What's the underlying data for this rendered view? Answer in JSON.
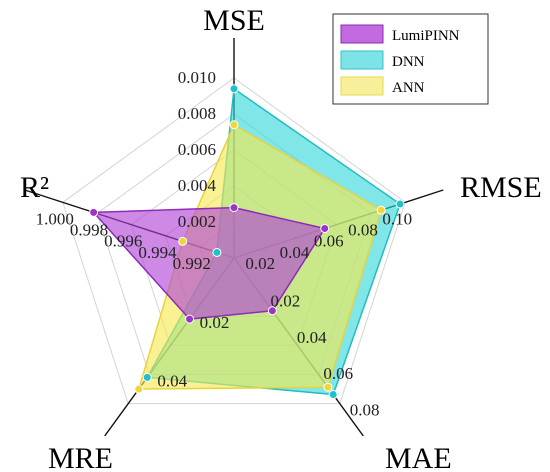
{
  "chart_data": {
    "type": "radar",
    "axes": [
      {
        "name": "MSE",
        "min": 0,
        "max": 0.01,
        "ticks": [
          "0.002",
          "0.004",
          "0.006",
          "0.008",
          "0.010"
        ]
      },
      {
        "name": "RMSE",
        "min": 0,
        "max": 0.1,
        "ticks": [
          "0.02",
          "0.04",
          "0.06",
          "0.08",
          "0.10"
        ]
      },
      {
        "name": "MAE",
        "min": 0,
        "max": 0.08,
        "ticks": [
          "0.02",
          "0.04",
          "0.06",
          "0.08"
        ]
      },
      {
        "name": "MRE",
        "min": 0,
        "max": 0.05,
        "ticks": [
          "0.02",
          "0.04"
        ]
      },
      {
        "name": "R²",
        "min": 0.99,
        "max": 1.0,
        "ticks": [
          "0.992",
          "0.994",
          "0.996",
          "0.998",
          "1.000"
        ]
      }
    ],
    "series": [
      {
        "name": "LumiPINN",
        "color": "#b040d8",
        "values": [
          0.0028,
          0.053,
          0.029,
          0.021,
          0.9982
        ]
      },
      {
        "name": "DNN",
        "color": "#33d1d6",
        "values": [
          0.0094,
          0.097,
          0.075,
          0.041,
          0.991
        ]
      },
      {
        "name": "ANN",
        "color": "#f2e34a",
        "values": [
          0.0074,
          0.086,
          0.071,
          0.045,
          0.993
        ]
      }
    ],
    "legend_position": "top-right"
  }
}
